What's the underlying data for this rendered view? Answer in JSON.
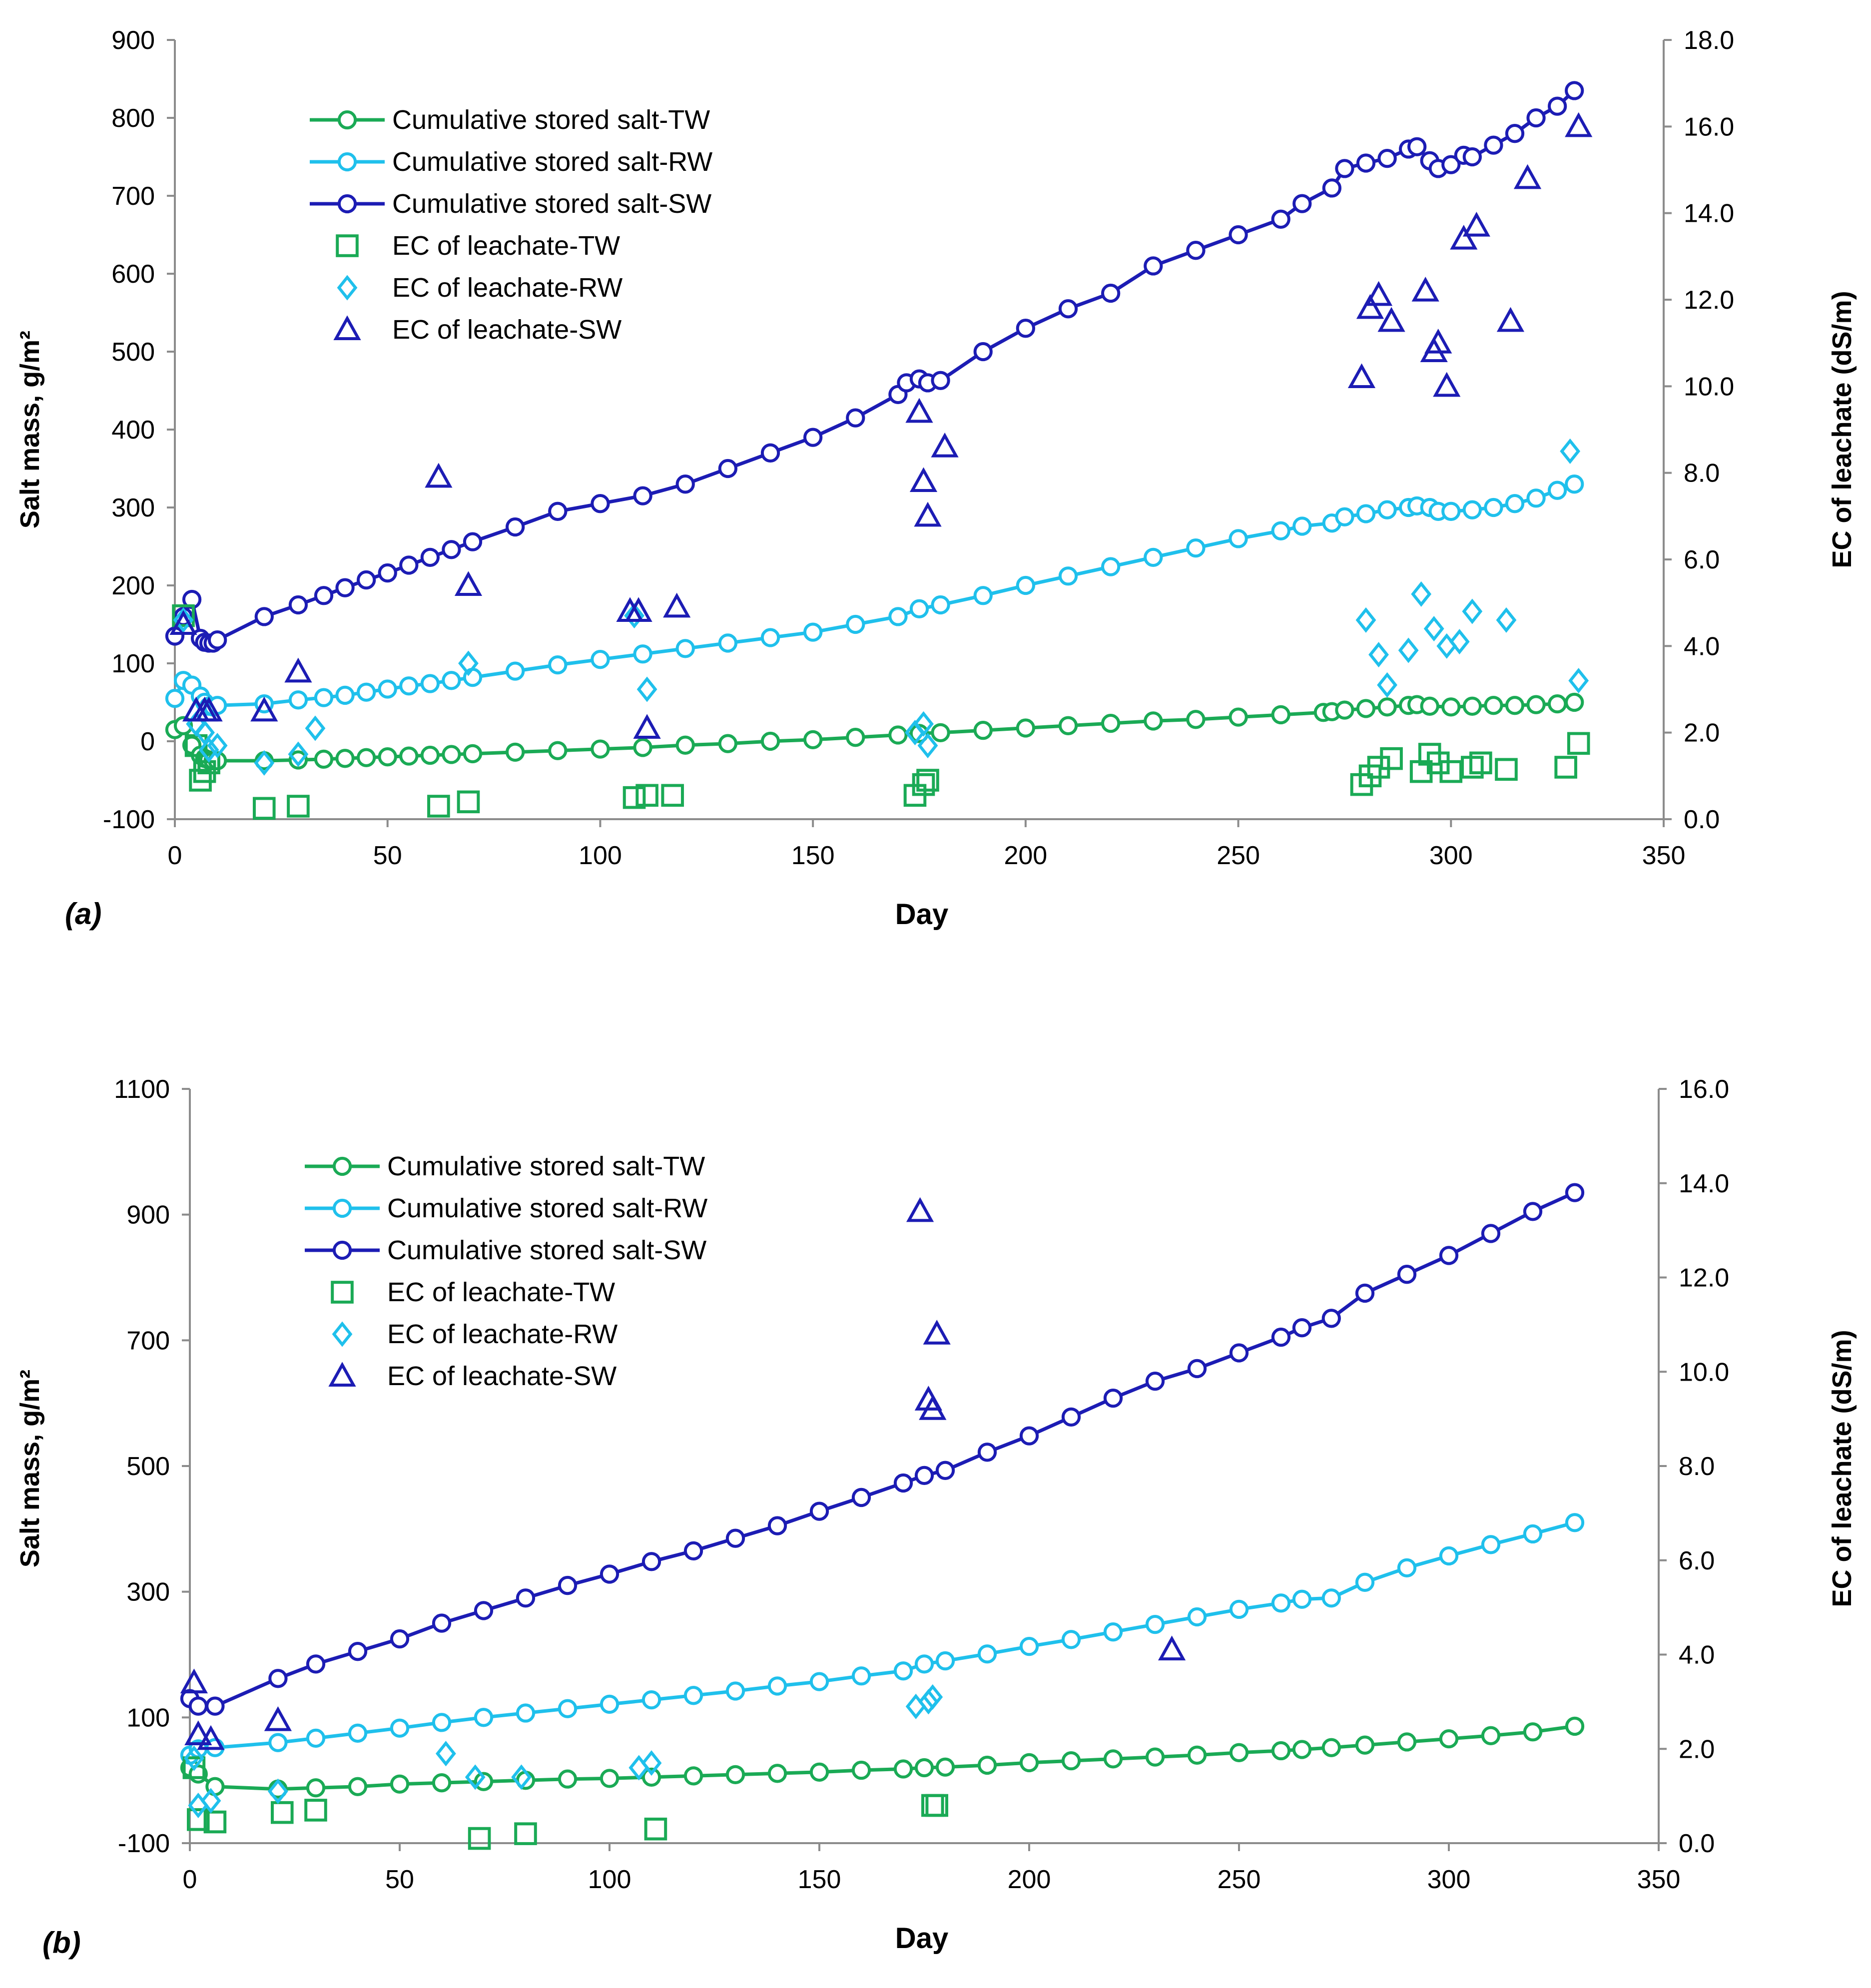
{
  "colors": {
    "tw": "#1aaa55",
    "rw": "#1fc0ec",
    "sw": "#1c1cb4",
    "axis": "#8c8c8c",
    "text": "#000000"
  },
  "chart_data": [
    {
      "panel_label": "(a)",
      "type": "line+scatter",
      "xlabel": "Day",
      "ylabel": "Salt mass, g/m²",
      "y2label": "EC of leachate (dS/m)",
      "xlim": [
        0,
        350
      ],
      "xticks": [
        "0",
        "50",
        "100",
        "150",
        "200",
        "250",
        "300",
        "350"
      ],
      "ylim": [
        -100,
        900
      ],
      "yticks": [
        "-100",
        "0",
        "100",
        "200",
        "300",
        "400",
        "500",
        "600",
        "700",
        "800",
        "900"
      ],
      "y2lim": [
        0,
        18
      ],
      "y2ticks": [
        "0.0",
        "2.0",
        "4.0",
        "6.0",
        "8.0",
        "10.0",
        "12.0",
        "14.0",
        "16.0",
        "18.0"
      ],
      "legend": {
        "position": "top-left",
        "entries": [
          "Cumulative stored salt-TW",
          "Cumulative stored salt-RW",
          "Cumulative stored salt-SW",
          "EC of leachate-TW",
          "EC of leachate-RW",
          "EC of leachate-SW"
        ]
      },
      "series": [
        {
          "name": "Cumulative stored salt-TW",
          "kind": "line",
          "axis": "left",
          "color": "tw",
          "x": [
            0,
            2,
            4,
            6,
            7,
            8,
            9,
            10,
            21,
            29,
            35,
            40,
            45,
            50,
            55,
            60,
            65,
            70,
            80,
            90,
            100,
            110,
            120,
            130,
            140,
            150,
            160,
            170,
            175,
            180,
            190,
            200,
            210,
            220,
            230,
            240,
            250,
            260,
            270,
            272,
            275,
            280,
            285,
            290,
            292,
            295,
            300,
            305,
            310,
            315,
            320,
            325,
            329
          ],
          "y": [
            15,
            20,
            -5,
            -18,
            -22,
            -24,
            -25,
            -25,
            -25,
            -24,
            -23,
            -22,
            -21,
            -20,
            -19,
            -18,
            -17,
            -16,
            -14,
            -12,
            -10,
            -8,
            -5,
            -3,
            0,
            2,
            5,
            8,
            10,
            11,
            14,
            17,
            20,
            23,
            26,
            28,
            31,
            34,
            37,
            38,
            40,
            42,
            44,
            46,
            47,
            45,
            44,
            45,
            46,
            46,
            47,
            48,
            50
          ]
        },
        {
          "name": "Cumulative stored salt-RW",
          "kind": "line",
          "axis": "left",
          "color": "rw",
          "x": [
            0,
            2,
            4,
            6,
            7,
            8,
            9,
            10,
            21,
            29,
            35,
            40,
            45,
            50,
            55,
            60,
            65,
            70,
            80,
            90,
            100,
            110,
            120,
            130,
            140,
            150,
            160,
            170,
            175,
            180,
            190,
            200,
            210,
            220,
            230,
            240,
            250,
            260,
            265,
            272,
            275,
            280,
            285,
            290,
            292,
            295,
            297,
            300,
            305,
            310,
            315,
            320,
            325,
            329
          ],
          "y": [
            55,
            78,
            72,
            58,
            50,
            45,
            44,
            46,
            48,
            53,
            56,
            59,
            63,
            67,
            71,
            74,
            78,
            82,
            90,
            98,
            105,
            112,
            119,
            126,
            133,
            140,
            150,
            160,
            170,
            175,
            187,
            200,
            212,
            224,
            236,
            248,
            260,
            270,
            276,
            280,
            288,
            292,
            297,
            300,
            302,
            300,
            295,
            295,
            297,
            300,
            305,
            312,
            322,
            330
          ],
          "markers": "circle"
        },
        {
          "name": "Cumulative stored salt-SW",
          "kind": "line",
          "axis": "left",
          "color": "sw",
          "x": [
            0,
            2,
            4,
            6,
            7,
            8,
            9,
            10,
            21,
            29,
            35,
            40,
            45,
            50,
            55,
            60,
            65,
            70,
            80,
            90,
            100,
            110,
            120,
            130,
            140,
            150,
            160,
            170,
            172,
            175,
            177,
            180,
            190,
            200,
            210,
            220,
            230,
            240,
            250,
            260,
            265,
            272,
            275,
            280,
            285,
            290,
            292,
            295,
            297,
            300,
            303,
            305,
            310,
            315,
            320,
            325,
            329
          ],
          "y": [
            135,
            160,
            182,
            132,
            127,
            126,
            126,
            130,
            160,
            175,
            187,
            197,
            207,
            216,
            226,
            236,
            246,
            256,
            275,
            295,
            305,
            315,
            330,
            350,
            370,
            390,
            415,
            445,
            460,
            465,
            460,
            463,
            500,
            530,
            555,
            575,
            610,
            630,
            650,
            670,
            690,
            710,
            735,
            742,
            748,
            760,
            763,
            745,
            735,
            740,
            752,
            750,
            765,
            780,
            800,
            815,
            835
          ],
          "markers": "circle"
        },
        {
          "name": "EC of leachate-TW",
          "kind": "scatter",
          "axis": "right",
          "color": "tw",
          "marker": "square",
          "x": [
            2,
            5,
            6,
            7,
            8,
            21,
            29,
            62,
            69,
            108,
            111,
            117,
            174,
            176,
            177,
            279,
            281,
            283,
            286,
            293,
            295,
            297,
            300,
            305,
            307,
            313,
            327,
            330
          ],
          "y": [
            4.7,
            1.7,
            0.9,
            1.1,
            1.3,
            0.25,
            0.3,
            0.3,
            0.4,
            0.5,
            0.55,
            0.55,
            0.55,
            0.8,
            0.9,
            0.8,
            1.0,
            1.2,
            1.4,
            1.1,
            1.5,
            1.3,
            1.1,
            1.2,
            1.3,
            1.15,
            1.2,
            1.75
          ]
        },
        {
          "name": "EC of leachate-RW",
          "kind": "scatter",
          "axis": "right",
          "color": "rw",
          "marker": "diamond",
          "x": [
            2,
            5,
            7,
            8,
            10,
            21,
            29,
            33,
            69,
            108,
            111,
            174,
            176,
            177,
            280,
            283,
            285,
            290,
            293,
            296,
            299,
            302,
            305,
            313,
            328,
            330
          ],
          "y": [
            4.6,
            2.2,
            2.0,
            1.6,
            1.7,
            1.3,
            1.5,
            2.1,
            3.6,
            4.7,
            3.0,
            2.0,
            2.2,
            1.7,
            4.6,
            3.8,
            3.1,
            3.9,
            5.2,
            4.4,
            4.0,
            4.1,
            4.8,
            4.6,
            8.5,
            3.2
          ]
        },
        {
          "name": "EC of leachate-SW",
          "kind": "scatter",
          "axis": "right",
          "color": "sw",
          "marker": "triangle",
          "x": [
            2,
            5,
            7,
            8,
            21,
            29,
            62,
            69,
            107,
            109,
            111,
            118,
            175,
            176,
            177,
            181,
            279,
            281,
            283,
            286,
            294,
            296,
            297,
            299,
            303,
            306,
            314,
            318,
            330
          ],
          "y": [
            4.5,
            2.5,
            2.5,
            2.5,
            2.5,
            3.4,
            7.9,
            5.4,
            4.8,
            4.8,
            2.1,
            4.9,
            9.4,
            7.8,
            7.0,
            8.6,
            10.2,
            11.8,
            12.1,
            11.5,
            12.2,
            10.8,
            11.0,
            10.0,
            13.4,
            13.7,
            11.5,
            14.8,
            16.0
          ]
        }
      ]
    },
    {
      "panel_label": "(b)",
      "type": "line+scatter",
      "xlabel": "Day",
      "ylabel": "Salt mass, g/m²",
      "y2label": "EC of leachate (dS/m)",
      "xlim": [
        0,
        350
      ],
      "xticks": [
        "0",
        "50",
        "100",
        "150",
        "200",
        "250",
        "300",
        "350"
      ],
      "ylim": [
        -100,
        1100
      ],
      "yticks": [
        "-100",
        "100",
        "300",
        "500",
        "700",
        "900",
        "1100"
      ],
      "y2lim": [
        0,
        16
      ],
      "y2ticks": [
        "0.0",
        "2.0",
        "4.0",
        "6.0",
        "8.0",
        "10.0",
        "12.0",
        "14.0",
        "16.0"
      ],
      "legend": {
        "position": "top-left",
        "entries": [
          "Cumulative stored salt-TW",
          "Cumulative stored salt-RW",
          "Cumulative stored salt-SW",
          "EC of leachate-TW",
          "EC of leachate-RW",
          "EC of leachate-SW"
        ]
      },
      "series": [
        {
          "name": "Cumulative stored salt-TW",
          "kind": "line",
          "axis": "left",
          "color": "tw",
          "x": [
            0,
            2,
            6,
            21,
            30,
            40,
            50,
            60,
            70,
            80,
            90,
            100,
            110,
            120,
            130,
            140,
            150,
            160,
            170,
            175,
            180,
            190,
            200,
            210,
            220,
            230,
            240,
            250,
            260,
            265,
            272,
            280,
            290,
            300,
            310,
            320,
            330
          ],
          "y": [
            20,
            10,
            -10,
            -14,
            -12,
            -10,
            -6,
            -4,
            -2,
            0,
            2,
            3,
            5,
            7,
            9,
            11,
            13,
            16,
            18,
            20,
            21,
            24,
            28,
            31,
            34,
            37,
            40,
            44,
            47,
            49,
            52,
            56,
            61,
            66,
            71,
            77,
            86
          ]
        },
        {
          "name": "Cumulative stored salt-RW",
          "kind": "line",
          "axis": "left",
          "color": "rw",
          "x": [
            0,
            2,
            6,
            21,
            30,
            40,
            50,
            60,
            70,
            80,
            90,
            100,
            110,
            120,
            130,
            140,
            150,
            160,
            170,
            175,
            180,
            190,
            200,
            210,
            220,
            230,
            240,
            250,
            260,
            265,
            272,
            280,
            290,
            300,
            310,
            320,
            330
          ],
          "y": [
            40,
            50,
            52,
            60,
            67,
            75,
            83,
            92,
            100,
            107,
            114,
            121,
            128,
            135,
            142,
            150,
            157,
            166,
            174,
            185,
            190,
            201,
            213,
            224,
            236,
            248,
            260,
            272,
            282,
            288,
            290,
            315,
            338,
            357,
            375,
            392,
            410
          ]
        },
        {
          "name": "Cumulative stored salt-SW",
          "kind": "line",
          "axis": "left",
          "color": "sw",
          "x": [
            0,
            2,
            6,
            21,
            30,
            40,
            50,
            60,
            70,
            80,
            90,
            100,
            110,
            120,
            130,
            140,
            150,
            160,
            170,
            175,
            180,
            190,
            200,
            210,
            220,
            230,
            240,
            250,
            260,
            265,
            272,
            280,
            290,
            300,
            310,
            320,
            330
          ],
          "y": [
            130,
            118,
            118,
            162,
            185,
            205,
            225,
            250,
            270,
            290,
            310,
            328,
            348,
            365,
            385,
            405,
            428,
            450,
            473,
            485,
            493,
            522,
            548,
            578,
            608,
            635,
            655,
            680,
            705,
            720,
            735,
            775,
            805,
            835,
            870,
            905,
            935
          ]
        },
        {
          "name": "EC of leachate-TW",
          "kind": "scatter",
          "axis": "right",
          "color": "tw",
          "marker": "square",
          "x": [
            1,
            2,
            6,
            22,
            30,
            69,
            80,
            111,
            177,
            178
          ],
          "y": [
            1.6,
            0.5,
            0.45,
            0.65,
            0.7,
            0.1,
            0.2,
            0.3,
            0.8,
            0.8
          ]
        },
        {
          "name": "EC of leachate-RW",
          "kind": "scatter",
          "axis": "right",
          "color": "rw",
          "marker": "diamond",
          "x": [
            1,
            2,
            5,
            21,
            61,
            68,
            79,
            107,
            110,
            173,
            176,
            177
          ],
          "y": [
            1.8,
            0.8,
            0.9,
            1.1,
            1.9,
            1.4,
            1.4,
            1.6,
            1.7,
            2.9,
            3.0,
            3.1
          ],
          "markers": "diamond"
        },
        {
          "name": "EC of leachate-SW",
          "kind": "scatter",
          "axis": "right",
          "color": "sw",
          "marker": "triangle",
          "x": [
            1,
            2,
            5,
            21,
            174,
            176,
            177,
            178,
            234
          ],
          "y": [
            3.4,
            2.3,
            2.2,
            2.6,
            13.4,
            9.4,
            9.2,
            10.8,
            4.1
          ]
        }
      ]
    }
  ]
}
